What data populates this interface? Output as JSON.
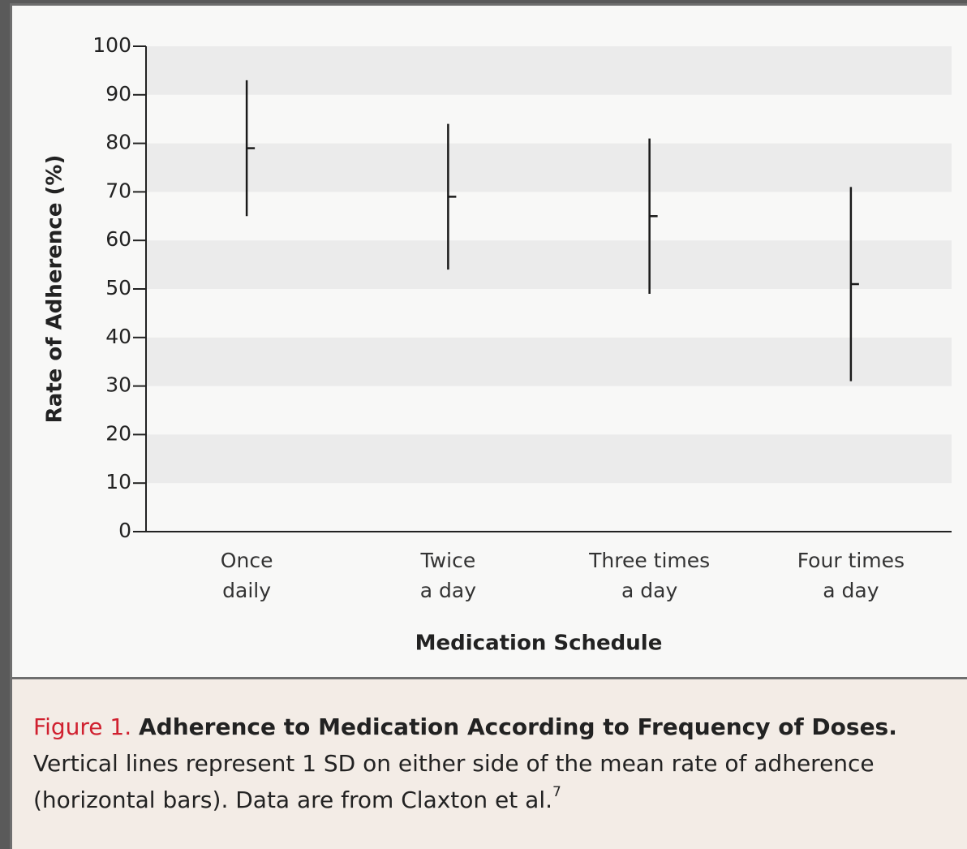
{
  "chart_data": {
    "type": "errorbar",
    "y_label": "Rate of Adherence (%)",
    "x_label": "Medication Schedule",
    "categories": [
      "Once\ndaily",
      "Twice\na day",
      "Three times\na day",
      "Four times\na day"
    ],
    "values": [
      79,
      69,
      65,
      51
    ],
    "errors": [
      14,
      15,
      16,
      20
    ],
    "color": "#1a1a1a",
    "ylim": [
      0,
      100
    ],
    "yticks": [
      0,
      10,
      20,
      30,
      40,
      50,
      60,
      70,
      80,
      90,
      100
    ],
    "bands": true
  },
  "caption": {
    "label": "Figure 1.",
    "title": "Adherence to Medication According to Frequency of Doses.",
    "text": "Vertical lines represent 1 SD on either side of the mean rate of adherence (horizontal bars). Data are from Claxton et al.",
    "reference": "7"
  }
}
